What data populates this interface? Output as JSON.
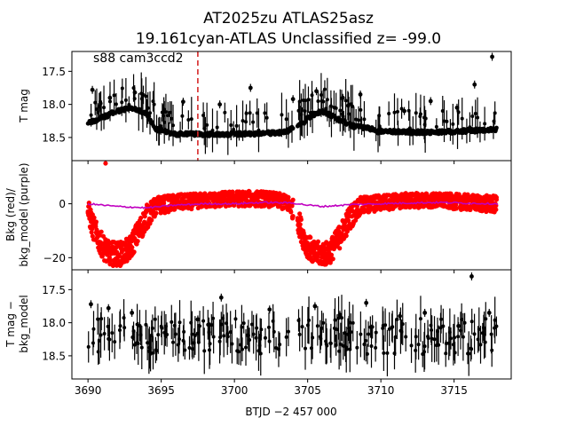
{
  "figure": {
    "title_line1": "AT2025zu  ATLAS25asz",
    "title_line2": "19.161cyan-ATLAS Unclassified z= -99.0"
  },
  "chart_data": [
    {
      "type": "scatter",
      "panel": "top",
      "ylabel": "T mag",
      "annotation": "s88 cam3ccd2",
      "xlim": [
        3688.9,
        3718.9
      ],
      "ylim": [
        18.85,
        17.2
      ],
      "inverted_y": true,
      "yticks": [
        17.5,
        18.0,
        18.5
      ],
      "ytick_labels": [
        "17.5",
        "18.0",
        "18.5"
      ],
      "marker_line_x": 3697.5,
      "marker_line_color": "#d62728",
      "series": [
        {
          "color": "#000000",
          "model_x": [
            3690.0,
            3691.0,
            3692.0,
            3693.0,
            3694.0,
            3694.7,
            3696.0,
            3698.0,
            3700.0,
            3702.0,
            3703.5,
            3704.5,
            3705.2,
            3706.0,
            3707.0,
            3708.0,
            3710.0,
            3712.0,
            3714.0,
            3716.0,
            3718.0
          ],
          "model_y": [
            18.28,
            18.2,
            18.1,
            18.05,
            18.15,
            18.38,
            18.45,
            18.45,
            18.45,
            18.44,
            18.42,
            18.3,
            18.18,
            18.1,
            18.22,
            18.32,
            18.4,
            18.42,
            18.42,
            18.4,
            18.38
          ],
          "outliers_x": [
            3690.3,
            3691.5,
            3693.2,
            3696.5,
            3699.0,
            3701.1,
            3704.0,
            3705.6,
            3707.4,
            3708.6,
            3711.6,
            3713.4,
            3715.2,
            3716.4,
            3717.6
          ],
          "outliers_y": [
            17.78,
            17.9,
            17.82,
            17.96,
            18.0,
            17.75,
            17.92,
            17.8,
            17.9,
            17.85,
            18.1,
            17.95,
            18.05,
            17.7,
            17.28
          ]
        }
      ]
    },
    {
      "type": "scatter",
      "panel": "middle",
      "ylabel_line1": "Bkg (red)/",
      "ylabel_line2": "bkg_model (purple)",
      "xlim": [
        3688.9,
        3718.9
      ],
      "ylim": [
        -24.5,
        16.0
      ],
      "yticks": [
        0,
        -20
      ],
      "ytick_labels": [
        "0",
        "−20"
      ],
      "series": [
        {
          "color": "#ff0000",
          "envelope_x": [
            3690.0,
            3690.3,
            3690.8,
            3691.3,
            3692.0,
            3692.8,
            3693.3,
            3694.0,
            3694.7,
            3696.0,
            3698.0,
            3700.0,
            3702.0,
            3703.0,
            3703.8,
            3704.3,
            3704.8,
            3705.5,
            3706.3,
            3707.0,
            3707.8,
            3708.5,
            3710.0,
            3712.0,
            3714.0,
            3716.0,
            3718.0
          ],
          "envelope_y": [
            -5.0,
            -11.0,
            -17.0,
            -21.0,
            -22.5,
            -20.0,
            -15.0,
            -8.0,
            -2.5,
            -1.0,
            0.0,
            0.5,
            0.5,
            0.0,
            -2.0,
            -8.0,
            -17.0,
            -22.0,
            -22.5,
            -17.0,
            -9.0,
            -3.0,
            -1.0,
            0.0,
            0.0,
            -1.0,
            -2.0
          ],
          "outliers_x": [
            3691.2
          ],
          "outliers_y": [
            15.0
          ]
        },
        {
          "color": "#c000c0",
          "x": [
            3690.0,
            3692.0,
            3694.0,
            3696.0,
            3698.0,
            3700.0,
            3702.0,
            3704.0,
            3705.0,
            3706.0,
            3708.0,
            3710.0,
            3712.0,
            3714.0,
            3716.0,
            3718.0
          ],
          "y": [
            0.0,
            -1.0,
            -1.5,
            -0.5,
            0.0,
            0.0,
            0.5,
            0.3,
            -0.5,
            -1.0,
            -0.3,
            0.0,
            0.3,
            0.5,
            0.2,
            0.0
          ]
        }
      ]
    },
    {
      "type": "scatter",
      "panel": "bottom",
      "ylabel_line1": "T mag −",
      "ylabel_line2": "bkg_model",
      "xlabel": "BTJD −2 457 000",
      "xlim": [
        3688.9,
        3718.9
      ],
      "ylim": [
        18.85,
        17.2
      ],
      "inverted_y": true,
      "xticks": [
        3690,
        3695,
        3700,
        3705,
        3710,
        3715
      ],
      "xtick_labels": [
        "3690",
        "3695",
        "3700",
        "3705",
        "3710",
        "3715"
      ],
      "yticks": [
        17.5,
        18.0,
        18.5
      ],
      "ytick_labels": [
        "17.5",
        "18.0",
        "18.5"
      ],
      "series": [
        {
          "color": "#000000",
          "base_mag": 18.2,
          "outliers_x": [
            3690.2,
            3691.4,
            3693.0,
            3697.5,
            3699.1,
            3702.4,
            3705.5,
            3707.2,
            3709.0,
            3711.3,
            3713.0,
            3715.3,
            3716.2,
            3717.4
          ],
          "outliers_y": [
            17.72,
            17.78,
            17.85,
            17.95,
            17.62,
            17.8,
            17.75,
            17.88,
            17.7,
            17.9,
            17.85,
            18.05,
            17.3,
            17.85
          ]
        }
      ]
    }
  ]
}
